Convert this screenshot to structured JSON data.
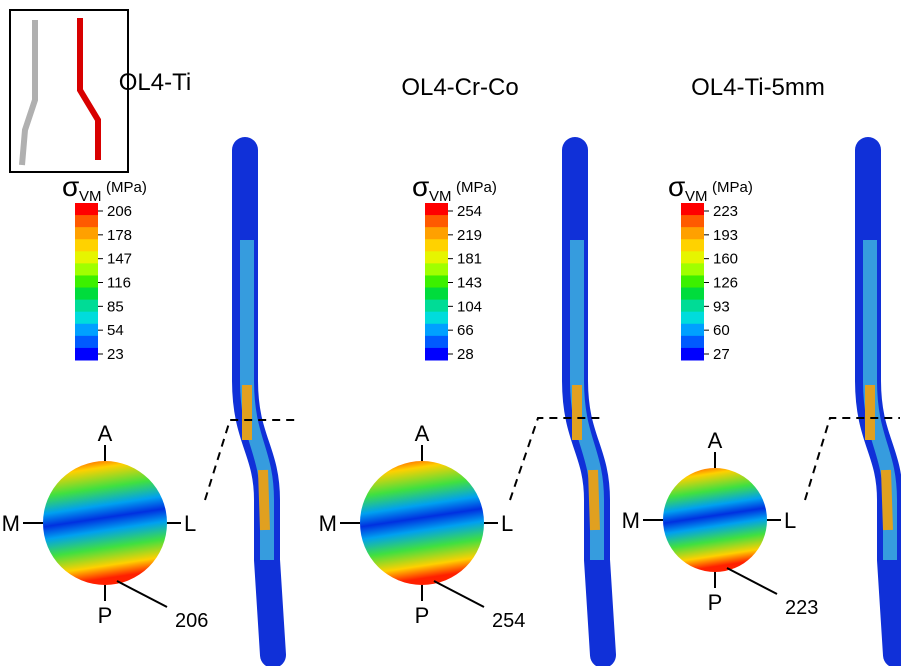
{
  "panels": [
    {
      "title": "OL4-Ti",
      "symbol": "σ",
      "subscript": "VM",
      "unit": "(MPa)",
      "legend_values": [
        206,
        178,
        147,
        116,
        85,
        54,
        23
      ],
      "directions": {
        "anterior": "A",
        "posterior": "P",
        "medial": "M",
        "lateral": "L"
      },
      "max_label": "206"
    },
    {
      "title": "OL4-Cr-Co",
      "symbol": "σ",
      "subscript": "VM",
      "unit": "(MPa)",
      "legend_values": [
        254,
        219,
        181,
        143,
        104,
        66,
        28
      ],
      "directions": {
        "anterior": "A",
        "posterior": "P",
        "medial": "M",
        "lateral": "L"
      },
      "max_label": "254"
    },
    {
      "title": "OL4-Ti-5mm",
      "symbol": "σ",
      "subscript": "VM",
      "unit": "(MPa)",
      "legend_values": [
        223,
        193,
        160,
        126,
        93,
        60,
        27
      ],
      "directions": {
        "anterior": "A",
        "posterior": "P",
        "medial": "M",
        "lateral": "L"
      },
      "max_label": "223"
    }
  ]
}
